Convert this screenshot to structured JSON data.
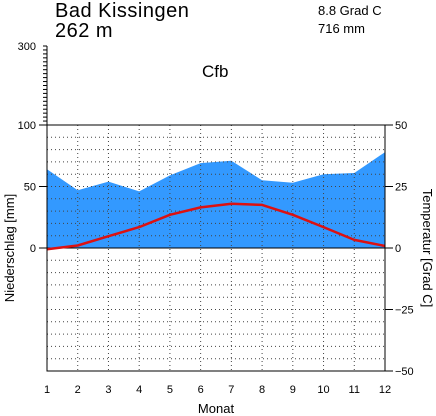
{
  "header": {
    "station": "Bad Kissingen",
    "elevation": "262  m",
    "mean_temperature": "8.8  Grad C",
    "annual_precipitation": "716  mm",
    "climate_class": "Cfb"
  },
  "chart_data": {
    "type": "area",
    "subtype": "climate-diagram",
    "categories": [
      1,
      2,
      3,
      4,
      5,
      6,
      7,
      8,
      9,
      10,
      11,
      12
    ],
    "xlabel": "Monat",
    "ylabel_left": "Niederschlag [mm]",
    "ylabel_right": "Temperatur [Grad C]",
    "left_axis": {
      "lower_ticks": [
        0,
        50,
        100
      ],
      "upper_ticks": [
        300
      ],
      "ylim": [
        -100,
        300
      ]
    },
    "right_axis": {
      "ticks": [
        50,
        25,
        0,
        -25,
        -50
      ],
      "tick_labels": [
        "50",
        "25",
        "0",
        "−25",
        "−50"
      ],
      "ylim": [
        -50,
        50
      ]
    },
    "series": [
      {
        "kind": "precipitation",
        "axis": "left",
        "unit": "mm",
        "color": "#3399ff",
        "values": [
          64,
          47,
          54,
          46,
          59,
          69,
          71,
          55,
          53,
          60,
          61,
          78
        ]
      },
      {
        "kind": "temperature",
        "axis": "right",
        "unit": "Grad C",
        "color": "#dd1111",
        "values": [
          -0.5,
          1.0,
          4.8,
          8.5,
          13.5,
          16.5,
          18.0,
          17.5,
          13.5,
          8.5,
          3.3,
          0.8
        ]
      }
    ],
    "grid": true
  }
}
